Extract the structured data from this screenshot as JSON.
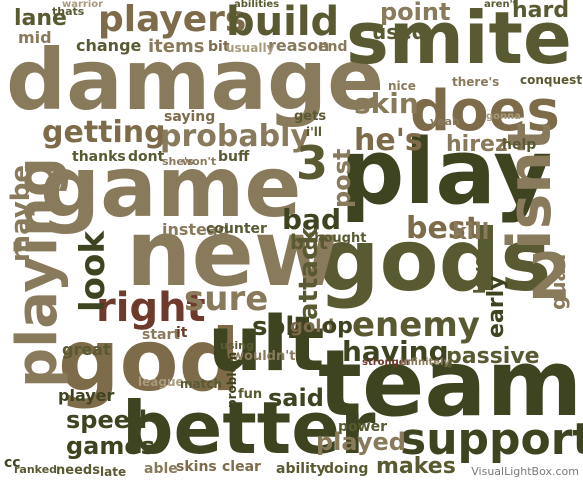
{
  "words": {
    "damage": "damage",
    "smite": "smite",
    "game": "game",
    "play": "play",
    "gods": "gods",
    "new": "new",
    "team": "team",
    "god": "god",
    "better": "better",
    "playing": "playing",
    "ult": "ult",
    "does": "does",
    "players": "players",
    "build": "build",
    "support": "support",
    "getting": "getting",
    "probably": "probably",
    "right": "right",
    "sure": "sure",
    "enemy": "enemy",
    "look": "look",
    "maybe": "maybe",
    "isnt": "isnt",
    "three": "3",
    "two": "2",
    "hes": "he's",
    "skin": "skin",
    "bad": "bad",
    "best": "best",
    "kill": "kill",
    "solo": "solo",
    "attack": "attack",
    "having": "having",
    "passive": "passive",
    "said": "said",
    "played": "played",
    "speed": "speed",
    "games": "games",
    "makes": "makes",
    "hirez": "hirez",
    "lane": "lane",
    "point": "point",
    "used": "used",
    "hard": "hard",
    "items": "items",
    "change": "change",
    "thanks": "thanks",
    "dont": "dont",
    "saying": "saying",
    "buff": "buff",
    "gold": "gold",
    "op": "op",
    "but": "but",
    "post": "post",
    "early": "early",
    "level": "level",
    "great": "great",
    "player": "player",
    "skins": "skins",
    "clear": "clear",
    "ability": "ability",
    "doing": "doing",
    "able": "able",
    "needs": "needs",
    "late": "late",
    "ranked": "ranked",
    "cc": "cc",
    "fun": "fun",
    "mid": "mid",
    "reason": "reason",
    "end": "end",
    "bit": "bit",
    "usually": "usually",
    "thats": "thats",
    "warrior": "warrior",
    "abilities": "abilities",
    "heres": "there's",
    "shes": "she's",
    "wont": "won't",
    "instead": "instead",
    "counter": "counter",
    "league": "league",
    "match": "match",
    "start": "start",
    "it": "it",
    "wouldnt": "wouldn't",
    "using": "using",
    "problem": "problem",
    "thought": "thought",
    "power": "power",
    "stronger": "stronger",
    "infinitely": "infinitely",
    "guan": "guan",
    "gets": "gets",
    "nice": "nice",
    "ill": "i'll",
    "yeah": "yeah",
    "gonna": "gonna",
    "help": "help",
    "conquest": "conquest",
    "arent": "aren't"
  },
  "watermark": "VisualLightBox.com"
}
